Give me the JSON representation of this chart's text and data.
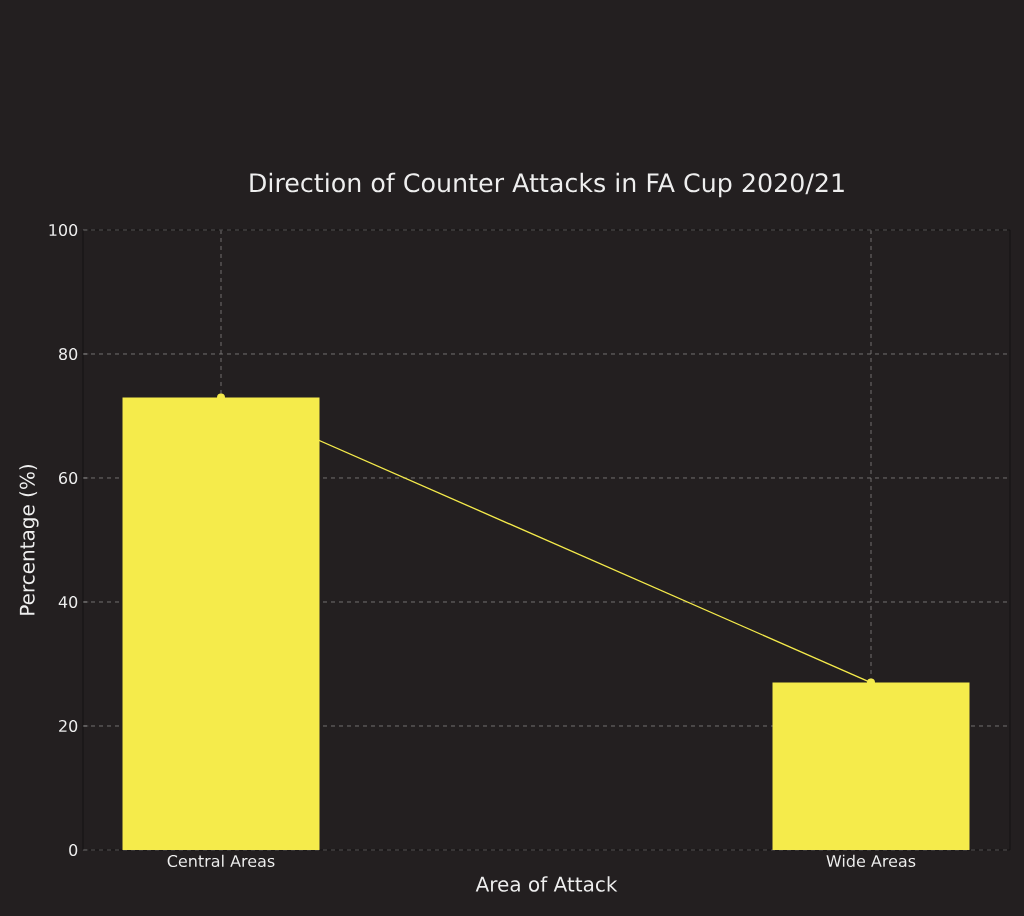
{
  "chart_data": {
    "type": "bar",
    "title": "Direction of Counter Attacks in FA Cup 2020/21",
    "xlabel": "Area of Attack",
    "ylabel": "Percentage (%)",
    "categories": [
      "Central Areas",
      "Wide Areas"
    ],
    "series": [
      {
        "type": "line",
        "color": "#f5eb4b",
        "values": [
          73,
          27
        ]
      },
      {
        "color": "#f5eb4b",
        "values": [
          73,
          27
        ]
      }
    ],
    "marker": "circle",
    "line_style": "solid",
    "ylim": [
      0,
      100
    ],
    "yticks": [
      0,
      20,
      40,
      60,
      80,
      100
    ],
    "grid": true
  }
}
